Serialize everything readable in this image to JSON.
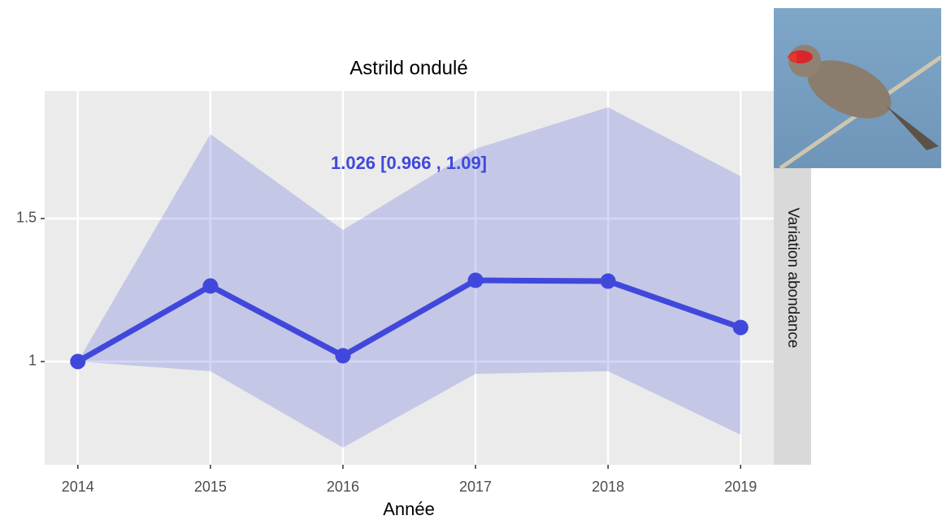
{
  "chart_data": {
    "type": "line",
    "title": "Astrild ondulé",
    "xlabel": "Année",
    "strip_label": "Variation abondance",
    "annotation": "1.026  [0.966 , 1.09]",
    "x": [
      2014,
      2015,
      2016,
      2017,
      2018,
      2019
    ],
    "values": [
      1.0,
      1.264,
      1.02,
      1.284,
      1.281,
      1.119
    ],
    "lower": [
      1.0,
      0.966,
      0.699,
      0.957,
      0.966,
      0.744
    ],
    "upper": [
      1.0,
      1.795,
      1.46,
      1.744,
      1.889,
      1.648
    ],
    "color": "#4048dc",
    "band_color": "#c8cbec",
    "xlim": [
      2013.75,
      2019.25
    ],
    "xticks": [
      2014,
      2015,
      2016,
      2017,
      2018,
      2019
    ],
    "ylim": [
      0.639,
      1.946
    ],
    "yticks": [
      1.0,
      1.5
    ],
    "grid": true
  }
}
